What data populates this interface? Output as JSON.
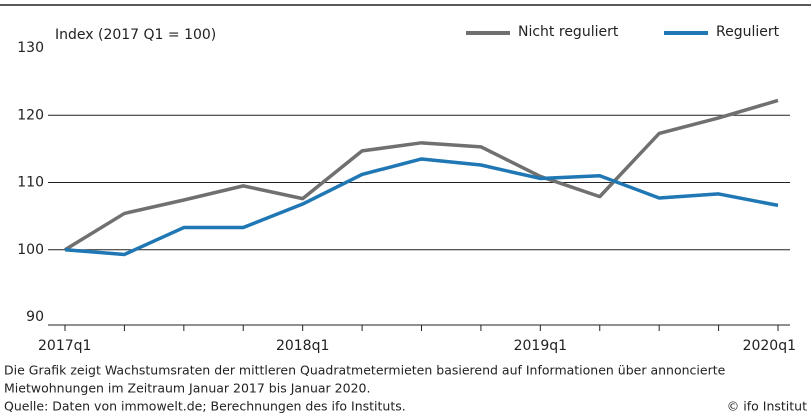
{
  "chart_data": {
    "type": "line",
    "y_axis_label": "Index (2017 Q1 = 100)",
    "categories": [
      "2017q1",
      null,
      null,
      null,
      "2018q1",
      null,
      null,
      null,
      "2019q1",
      null,
      null,
      null,
      "2020q1"
    ],
    "series": [
      {
        "name": "Nicht reguliert",
        "color": "#707070",
        "values": [
          100,
          105.4,
          107.4,
          109.5,
          107.6,
          114.7,
          115.9,
          115.3,
          110.9,
          107.9,
          117.3,
          119.6,
          122.2
        ]
      },
      {
        "name": "Reguliert",
        "color": "#1f77b4",
        "values": [
          100,
          99.3,
          103.3,
          103.3,
          106.8,
          111.2,
          113.5,
          112.6,
          110.6,
          111.0,
          107.7,
          108.3,
          106.6
        ]
      }
    ],
    "ylim": [
      90,
      130
    ],
    "yticks": [
      90,
      100,
      110,
      120,
      130
    ],
    "grid": true,
    "note": [
      "Die Grafik zeigt Wachstumsraten der mittleren Quadratmetermieten basierend auf Informationen über annoncierte",
      "Mietwohnungen im Zeitraum Januar 2017 bis Januar 2020."
    ],
    "source": "Quelle: Daten von immowelt.de; Berechnungen des ifo Instituts.",
    "copyright": "© ifo Institut"
  }
}
